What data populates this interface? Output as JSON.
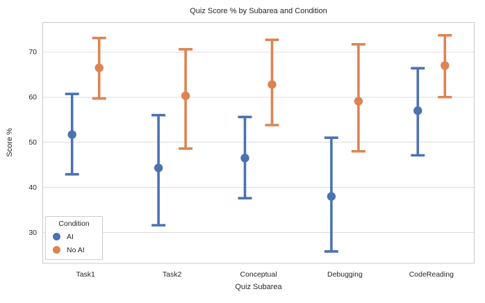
{
  "figure": {
    "title": "Quiz Score % by Subarea and Condition",
    "xlabel": "Quiz Subarea",
    "ylabel": "Score %"
  },
  "legend": {
    "title": "Condition",
    "items": [
      {
        "label": "AI",
        "color": "#4C72B0"
      },
      {
        "label": "No AI",
        "color": "#DD8452"
      }
    ]
  },
  "chart_data": {
    "type": "scatter",
    "subtype": "point-plot-with-error-bars",
    "title": "Quiz Score % by Subarea and Condition",
    "xlabel": "Quiz Subarea",
    "ylabel": "Score %",
    "categories": [
      "Task1",
      "Task2",
      "Conceptual",
      "Debugging",
      "CodeReading"
    ],
    "series": [
      {
        "name": "AI",
        "color": "#4C72B0",
        "means": [
          51.7,
          44.3,
          46.5,
          38.0,
          57.0
        ],
        "ci_low": [
          42.9,
          31.6,
          37.6,
          25.8,
          47.1
        ],
        "ci_high": [
          60.7,
          56.0,
          55.6,
          51.0,
          66.4
        ]
      },
      {
        "name": "No AI",
        "color": "#DD8452",
        "means": [
          66.5,
          60.3,
          62.8,
          59.1,
          67.0
        ],
        "ci_low": [
          59.7,
          48.6,
          53.8,
          48.0,
          60.0
        ],
        "ci_high": [
          73.1,
          70.6,
          72.7,
          71.7,
          73.7
        ]
      }
    ],
    "yticks": [
      30,
      40,
      50,
      60,
      70
    ],
    "ylim": [
      23.1,
      76.6
    ],
    "grid": "horizontal",
    "grid_color": "#dcdcdc",
    "spine_color": "#c9c9c9",
    "legend_position": "lower left"
  }
}
